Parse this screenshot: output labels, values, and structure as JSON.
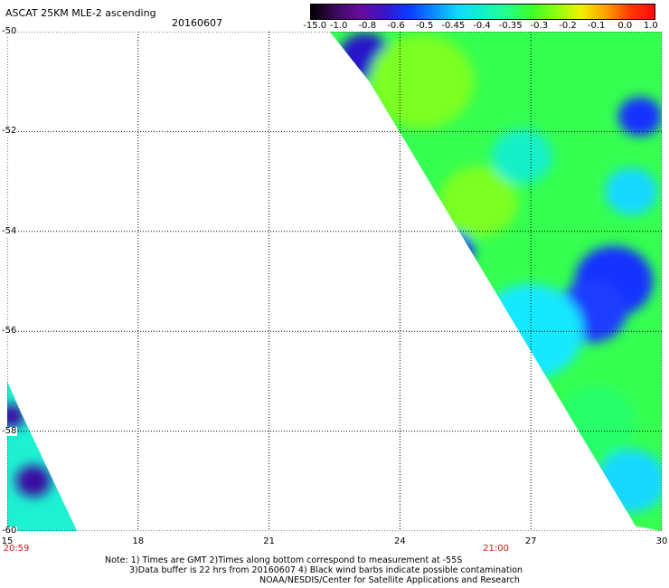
{
  "header": {
    "title": "ASCAT 25KM MLE-2 ascending",
    "date": "20160607"
  },
  "colorbar": {
    "labels": [
      "-15.0",
      "-1.0",
      "-0.8",
      "-0.6",
      "-0.5",
      "-0.45",
      "-0.4",
      "-0.35",
      "-0.3",
      "-0.2",
      "-0.1",
      "0.0",
      "1.0"
    ],
    "colors": [
      "#000000",
      "#3a0a5a",
      "#6a0aa0",
      "#3a14c8",
      "#0a3cff",
      "#0a8cff",
      "#14d8ff",
      "#14f0c8",
      "#28ff8c",
      "#3cff28",
      "#8cff14",
      "#f0f000",
      "#ffa000",
      "#ff3c00",
      "#ff0a0a"
    ]
  },
  "map": {
    "lat_labels": [
      "-50",
      "-52",
      "-54",
      "-56",
      "-58",
      "-60"
    ],
    "lon_labels": [
      "15",
      "18",
      "21",
      "24",
      "27",
      "30"
    ],
    "lat_range": [
      -60,
      -50
    ],
    "lon_range": [
      15,
      30
    ],
    "time_labels": [
      {
        "text": "20:59",
        "lon": 15
      },
      {
        "text": "21:00",
        "lon": 26.2
      }
    ],
    "swaths": [
      {
        "polygon": [
          [
            22.3,
            -49.9
          ],
          [
            30,
            -49.9
          ],
          [
            30,
            -60.0
          ],
          [
            29.4,
            -59.9
          ],
          [
            23.3,
            -51.0
          ]
        ],
        "background": "#35ff50"
      },
      {
        "polygon": [
          [
            15,
            -57.0
          ],
          [
            15.3,
            -57.6
          ],
          [
            16.6,
            -60.0
          ],
          [
            15,
            -60.0
          ]
        ],
        "background": "#1ef0d2"
      }
    ],
    "blobs": [
      {
        "lon": 28.9,
        "lat": -55.0,
        "r": 0.9,
        "color": "#1432ff"
      },
      {
        "lon": 28.4,
        "lat": -55.6,
        "r": 0.8,
        "color": "#1a3cff"
      },
      {
        "lon": 29.5,
        "lat": -51.7,
        "r": 0.5,
        "color": "#1432ff"
      },
      {
        "lon": 23.2,
        "lat": -50.5,
        "r": 0.6,
        "color": "#2814c8"
      },
      {
        "lon": 24.5,
        "lat": -51.0,
        "r": 1.2,
        "color": "#7cff20"
      },
      {
        "lon": 25.8,
        "lat": -53.4,
        "r": 0.9,
        "color": "#7cff20"
      },
      {
        "lon": 25.2,
        "lat": -54.4,
        "r": 0.5,
        "color": "#1432ff"
      },
      {
        "lon": 27.0,
        "lat": -56.0,
        "r": 1.2,
        "color": "#14e8ff"
      },
      {
        "lon": 28.5,
        "lat": -57.8,
        "r": 0.9,
        "color": "#28ff6a"
      },
      {
        "lon": 29.3,
        "lat": -59.0,
        "r": 0.8,
        "color": "#14d8ff"
      },
      {
        "lon": 15.6,
        "lat": -59.0,
        "r": 0.4,
        "color": "#3a0aa0"
      },
      {
        "lon": 15.1,
        "lat": -57.7,
        "r": 0.3,
        "color": "#3a0aa0"
      },
      {
        "lon": 26.8,
        "lat": -52.5,
        "r": 0.7,
        "color": "#14f0c8"
      },
      {
        "lon": 29.3,
        "lat": -53.2,
        "r": 0.6,
        "color": "#14d8ff"
      }
    ]
  },
  "footer": {
    "line1": "Note: 1) Times are GMT 2)Times along bottom correspond to measurement at -55S",
    "line2": "3)Data buffer is 22 hrs from 20160607 4) Black wind barbs indicate possible contamination",
    "line3": "NOAA/NESDIS/Center for Satellite Applications and Research"
  }
}
